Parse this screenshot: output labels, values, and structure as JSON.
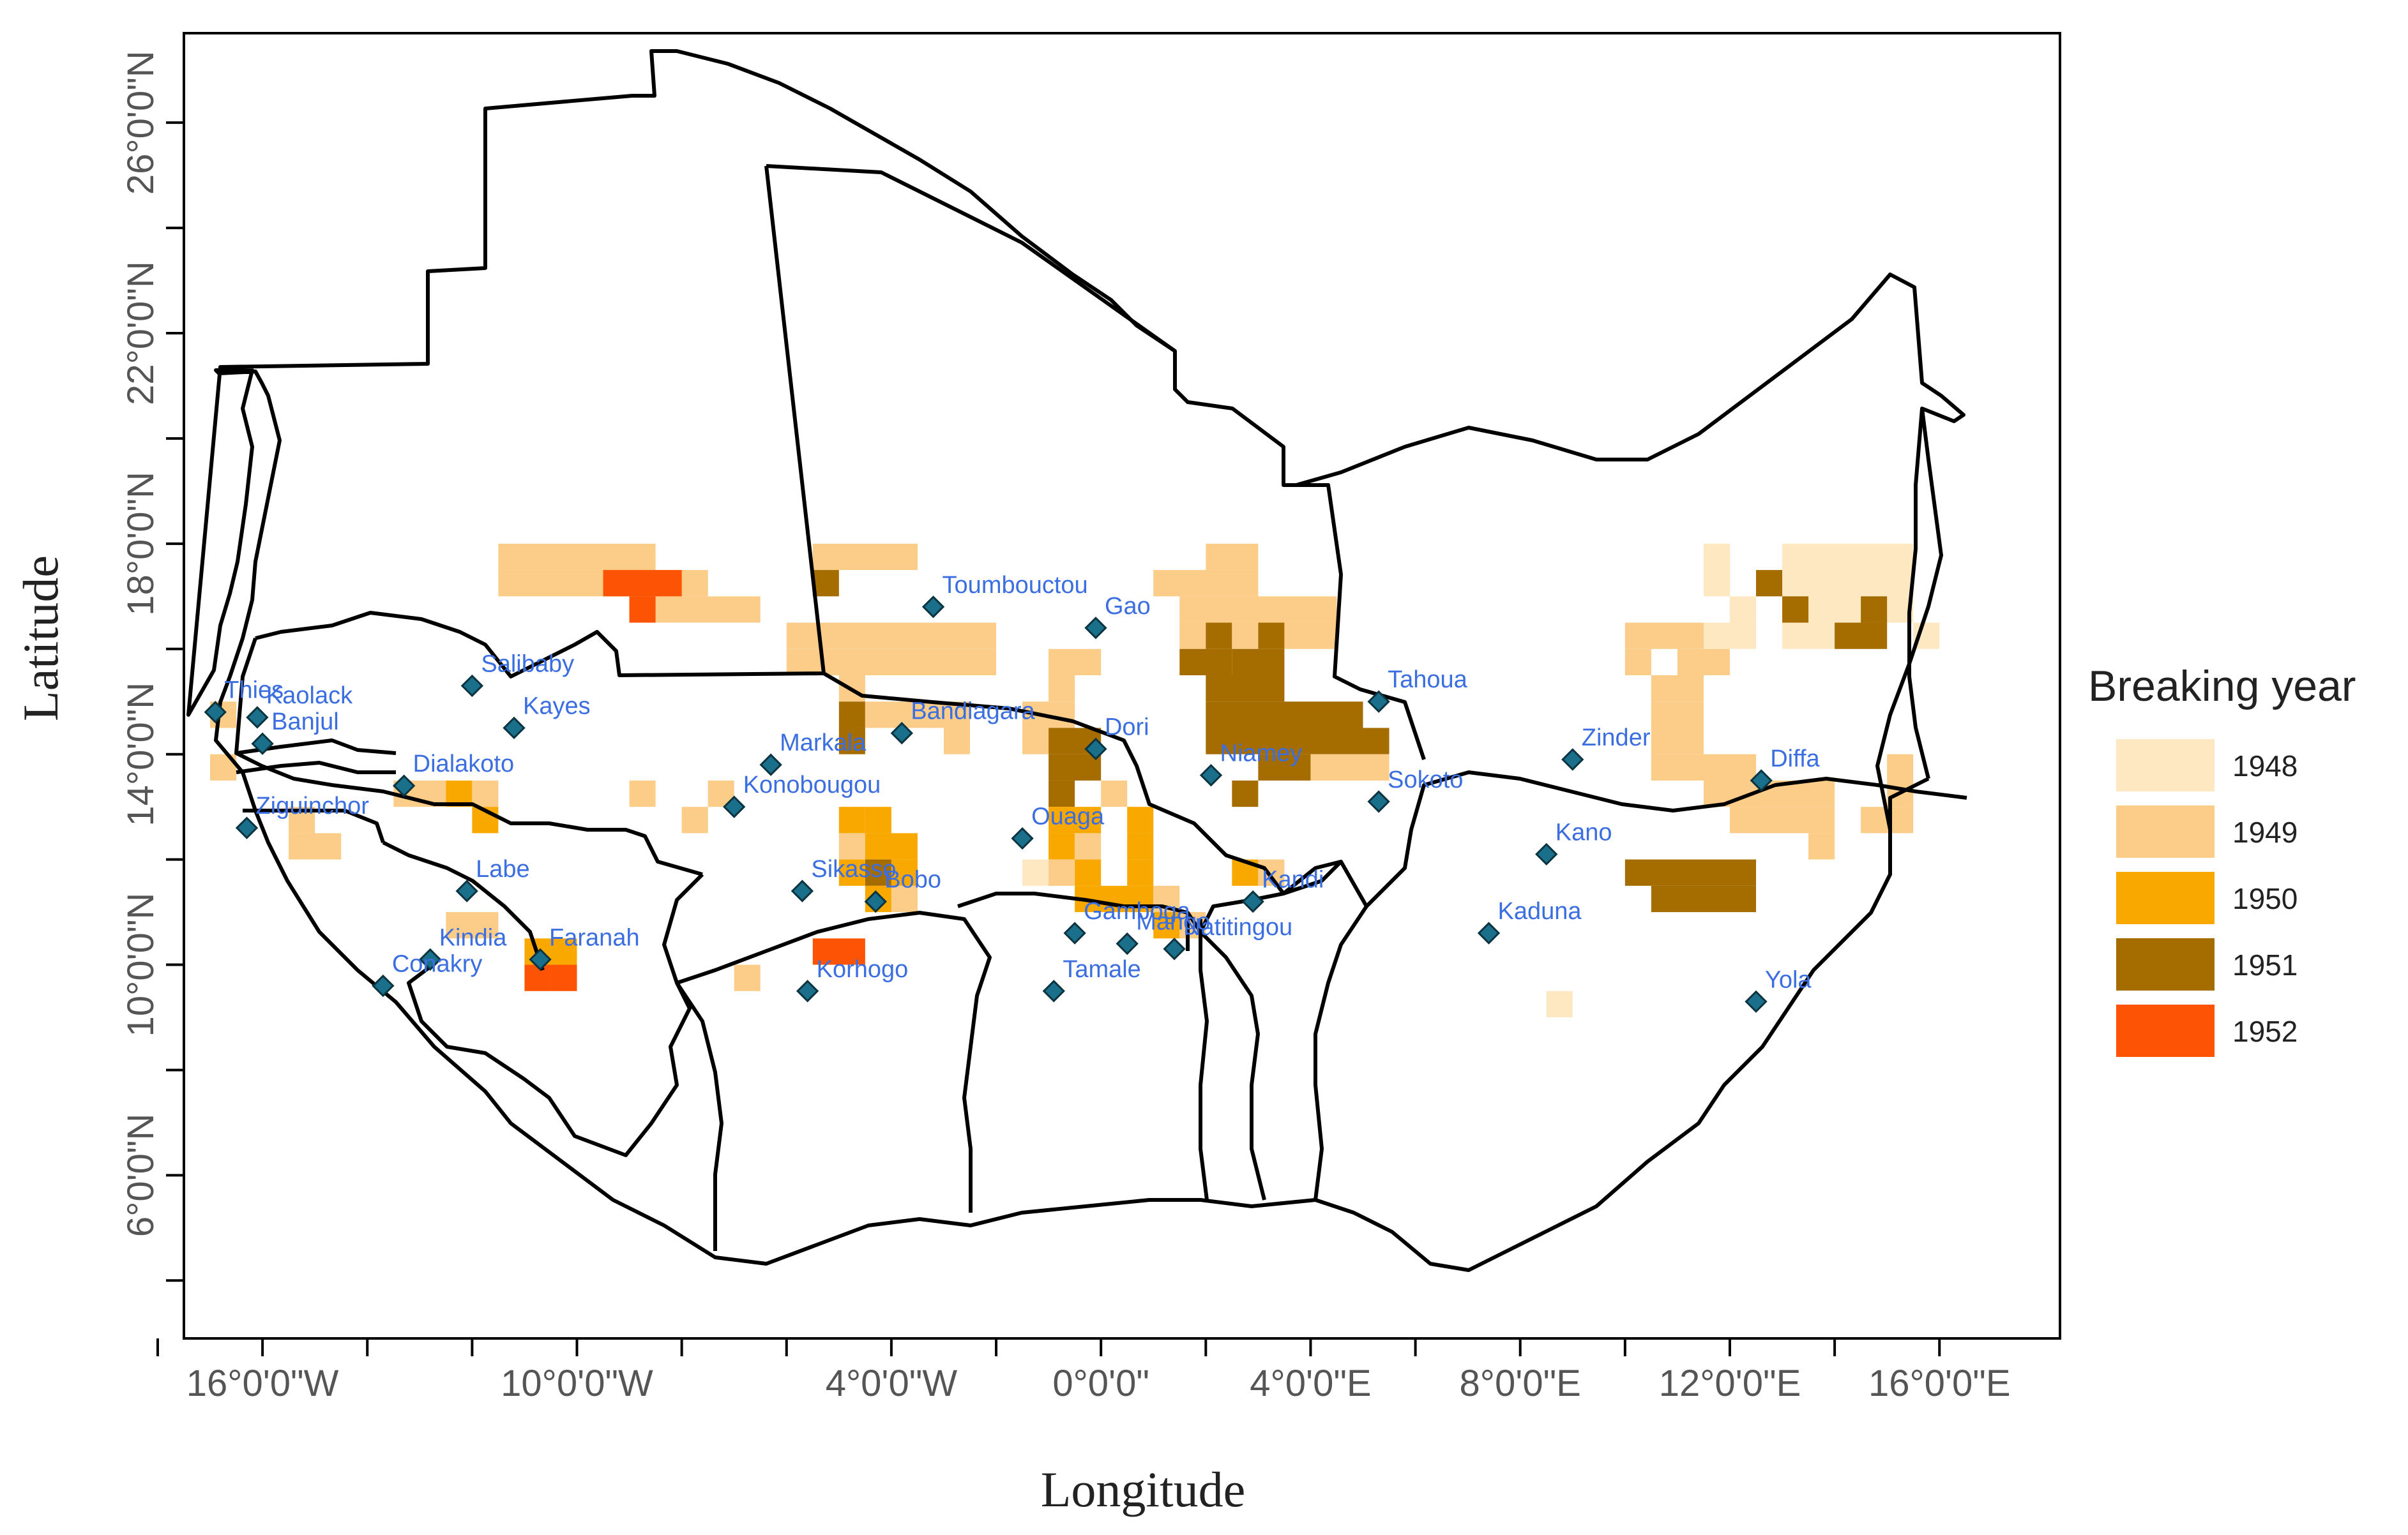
{
  "map": {
    "xlabel": "Longitude",
    "ylabel": "Latitude",
    "x_ticks": [
      {
        "value": -16,
        "label": "16°0'0\"W"
      },
      {
        "value": -10,
        "label": "10°0'0\"W"
      },
      {
        "value": -4,
        "label": "4°0'0\"W"
      },
      {
        "value": 0,
        "label": "0°0'0\""
      },
      {
        "value": 4,
        "label": "4°0'0\"E"
      },
      {
        "value": 8,
        "label": "8°0'0\"E"
      },
      {
        "value": 12,
        "label": "12°0'0\"E"
      },
      {
        "value": 16,
        "label": "16°0'0\"E"
      }
    ],
    "x_minor_ticks": [
      -18,
      -14,
      -12,
      -8,
      -6,
      -2,
      2,
      6,
      10,
      14
    ],
    "y_ticks": [
      {
        "value": 6,
        "label": "6°0'0\"N"
      },
      {
        "value": 10,
        "label": "10°0'0\"N"
      },
      {
        "value": 14,
        "label": "14°0'0\"N"
      },
      {
        "value": 18,
        "label": "18°0'0\"N"
      },
      {
        "value": 22,
        "label": "22°0'0\"N"
      },
      {
        "value": 26,
        "label": "26°0'0\"N"
      }
    ],
    "y_minor_ticks": [
      4,
      8,
      12,
      16,
      20,
      24
    ],
    "xlim": [
      -17.5,
      18.3
    ],
    "ylim": [
      2.9,
      27.7
    ]
  },
  "legend": {
    "title": "Breaking year",
    "entries": [
      {
        "label": "1948",
        "color": "#fde8c2"
      },
      {
        "label": "1949",
        "color": "#fbcd88"
      },
      {
        "label": "1950",
        "color": "#f9a800"
      },
      {
        "label": "1951",
        "color": "#a56c00"
      },
      {
        "label": "1952",
        "color": "#fc5404"
      }
    ]
  },
  "cities": [
    {
      "name": "Thies",
      "lon": -16.9,
      "lat": 14.8
    },
    {
      "name": "Kaolack",
      "lon": -16.1,
      "lat": 14.7
    },
    {
      "name": "Banjul",
      "lon": -16.0,
      "lat": 14.2
    },
    {
      "name": "Ziguinchor",
      "lon": -16.3,
      "lat": 12.6
    },
    {
      "name": "Salibaby",
      "lon": -12.0,
      "lat": 15.3
    },
    {
      "name": "Kayes",
      "lon": -11.2,
      "lat": 14.5
    },
    {
      "name": "Dialakoto",
      "lon": -13.3,
      "lat": 13.4
    },
    {
      "name": "Labe",
      "lon": -12.1,
      "lat": 11.4
    },
    {
      "name": "Kindia",
      "lon": -12.8,
      "lat": 10.1
    },
    {
      "name": "Conakry",
      "lon": -13.7,
      "lat": 9.6
    },
    {
      "name": "Faranah",
      "lon": -10.7,
      "lat": 10.1
    },
    {
      "name": "Toumbouctou",
      "lon": -3.2,
      "lat": 16.8
    },
    {
      "name": "Gao",
      "lon": -0.1,
      "lat": 16.4
    },
    {
      "name": "Bandiagara",
      "lon": -3.8,
      "lat": 14.4
    },
    {
      "name": "Markala",
      "lon": -6.3,
      "lat": 13.8
    },
    {
      "name": "Konobougou",
      "lon": -7.0,
      "lat": 13.0
    },
    {
      "name": "Dori",
      "lon": -0.1,
      "lat": 14.1
    },
    {
      "name": "Niamey",
      "lon": 2.1,
      "lat": 13.6
    },
    {
      "name": "Tahoua",
      "lon": 5.3,
      "lat": 15.0
    },
    {
      "name": "Sokoto",
      "lon": 5.3,
      "lat": 13.1
    },
    {
      "name": "Zinder",
      "lon": 9.0,
      "lat": 13.9
    },
    {
      "name": "Diffa",
      "lon": 12.6,
      "lat": 13.5
    },
    {
      "name": "Kano",
      "lon": 8.5,
      "lat": 12.1
    },
    {
      "name": "Kaduna",
      "lon": 7.4,
      "lat": 10.6
    },
    {
      "name": "Yola",
      "lon": 12.5,
      "lat": 9.3
    },
    {
      "name": "Ouaga",
      "lon": -1.5,
      "lat": 12.4
    },
    {
      "name": "Sikasso",
      "lon": -5.7,
      "lat": 11.4
    },
    {
      "name": "Bobo",
      "lon": -4.3,
      "lat": 11.2
    },
    {
      "name": "Korhogo",
      "lon": -5.6,
      "lat": 9.5
    },
    {
      "name": "Gamboga",
      "lon": -0.5,
      "lat": 10.6
    },
    {
      "name": "Mango",
      "lon": 0.5,
      "lat": 10.4
    },
    {
      "name": "Tamale",
      "lon": -0.9,
      "lat": 9.5
    },
    {
      "name": "Natitingou",
      "lon": 1.4,
      "lat": 10.3
    },
    {
      "name": "Kandi",
      "lon": 2.9,
      "lat": 11.2
    }
  ],
  "grid_cells": [
    {
      "lon": -11.5,
      "lat": 17.5,
      "cols": 6,
      "rows": 1,
      "year": 1949
    },
    {
      "lon": -5.5,
      "lat": 17.5,
      "cols": 4,
      "rows": 1,
      "year": 1949
    },
    {
      "lon": -11.5,
      "lat": 17.0,
      "cols": 8,
      "rows": 1,
      "year": 1949
    },
    {
      "lon": -9.0,
      "lat": 16.5,
      "cols": 5,
      "rows": 1,
      "year": 1949
    },
    {
      "lon": -9.5,
      "lat": 17.0,
      "cols": 3,
      "rows": 1,
      "year": 1952
    },
    {
      "lon": -9.0,
      "lat": 16.5,
      "cols": 1,
      "rows": 1,
      "year": 1952
    },
    {
      "lon": -5.5,
      "lat": 17.0,
      "cols": 1,
      "rows": 1,
      "year": 1951
    },
    {
      "lon": 2.0,
      "lat": 17.5,
      "cols": 2,
      "rows": 1,
      "year": 1949
    },
    {
      "lon": 1.0,
      "lat": 17.0,
      "cols": 4,
      "rows": 1,
      "year": 1949
    },
    {
      "lon": 1.5,
      "lat": 16.5,
      "cols": 6,
      "rows": 1,
      "year": 1949
    },
    {
      "lon": 1.5,
      "lat": 16.0,
      "cols": 1,
      "rows": 1,
      "year": 1949
    },
    {
      "lon": 2.0,
      "lat": 16.0,
      "cols": 1,
      "rows": 1,
      "year": 1951
    },
    {
      "lon": 2.5,
      "lat": 16.0,
      "cols": 1,
      "rows": 1,
      "year": 1949
    },
    {
      "lon": 3.0,
      "lat": 16.0,
      "cols": 1,
      "rows": 1,
      "year": 1951
    },
    {
      "lon": 3.5,
      "lat": 16.0,
      "cols": 2,
      "rows": 1,
      "year": 1949
    },
    {
      "lon": -6.0,
      "lat": 16.0,
      "cols": 8,
      "rows": 1,
      "year": 1949
    },
    {
      "lon": -6.0,
      "lat": 15.5,
      "cols": 8,
      "rows": 1,
      "year": 1949
    },
    {
      "lon": -1.0,
      "lat": 15.5,
      "cols": 2,
      "rows": 1,
      "year": 1949
    },
    {
      "lon": -1.0,
      "lat": 15.0,
      "cols": 1,
      "rows": 1,
      "year": 1949
    },
    {
      "lon": 1.5,
      "lat": 15.5,
      "cols": 2,
      "rows": 1,
      "year": 1951
    },
    {
      "lon": 2.5,
      "lat": 15.5,
      "cols": 2,
      "rows": 1,
      "year": 1951
    },
    {
      "lon": 2.0,
      "lat": 15.0,
      "cols": 3,
      "rows": 1,
      "year": 1951
    },
    {
      "lon": 2.0,
      "lat": 14.5,
      "cols": 6,
      "rows": 1,
      "year": 1951
    },
    {
      "lon": 2.0,
      "lat": 14.0,
      "cols": 7,
      "rows": 1,
      "year": 1951
    },
    {
      "lon": 3.0,
      "lat": 13.5,
      "cols": 2,
      "rows": 1,
      "year": 1951
    },
    {
      "lon": 4.0,
      "lat": 13.5,
      "cols": 3,
      "rows": 1,
      "year": 1949
    },
    {
      "lon": 2.5,
      "lat": 13.0,
      "cols": 1,
      "rows": 1,
      "year": 1951
    },
    {
      "lon": -5.0,
      "lat": 15.0,
      "cols": 1,
      "rows": 1,
      "year": 1949
    },
    {
      "lon": -5.0,
      "lat": 14.5,
      "cols": 1,
      "rows": 1,
      "year": 1951
    },
    {
      "lon": -5.0,
      "lat": 14.0,
      "cols": 1,
      "rows": 1,
      "year": 1951
    },
    {
      "lon": -4.5,
      "lat": 14.5,
      "cols": 4,
      "rows": 1,
      "year": 1949
    },
    {
      "lon": -3.0,
      "lat": 14.0,
      "cols": 1,
      "rows": 1,
      "year": 1949
    },
    {
      "lon": -1.5,
      "lat": 14.5,
      "cols": 2,
      "rows": 1,
      "year": 1949
    },
    {
      "lon": -1.5,
      "lat": 14.0,
      "cols": 1,
      "rows": 1,
      "year": 1949
    },
    {
      "lon": -1.0,
      "lat": 14.0,
      "cols": 2,
      "rows": 1,
      "year": 1951
    },
    {
      "lon": -1.0,
      "lat": 13.5,
      "cols": 2,
      "rows": 1,
      "year": 1951
    },
    {
      "lon": 0.0,
      "lat": 13.0,
      "cols": 1,
      "rows": 1,
      "year": 1949
    },
    {
      "lon": -1.0,
      "lat": 13.0,
      "cols": 1,
      "rows": 1,
      "year": 1951
    },
    {
      "lon": -1.0,
      "lat": 12.5,
      "cols": 2,
      "rows": 1,
      "year": 1950
    },
    {
      "lon": 0.5,
      "lat": 12.5,
      "cols": 1,
      "rows": 1,
      "year": 1950
    },
    {
      "lon": -1.0,
      "lat": 12.0,
      "cols": 1,
      "rows": 1,
      "year": 1950
    },
    {
      "lon": -0.5,
      "lat": 12.0,
      "cols": 1,
      "rows": 1,
      "year": 1949
    },
    {
      "lon": 0.5,
      "lat": 12.0,
      "cols": 1,
      "rows": 1,
      "year": 1950
    },
    {
      "lon": -1.5,
      "lat": 11.5,
      "cols": 1,
      "rows": 1,
      "year": 1948
    },
    {
      "lon": -1.0,
      "lat": 11.5,
      "cols": 1,
      "rows": 1,
      "year": 1949
    },
    {
      "lon": -0.5,
      "lat": 11.5,
      "cols": 1,
      "rows": 1,
      "year": 1950
    },
    {
      "lon": 0.5,
      "lat": 11.5,
      "cols": 1,
      "rows": 1,
      "year": 1950
    },
    {
      "lon": -0.5,
      "lat": 11.0,
      "cols": 3,
      "rows": 1,
      "year": 1950
    },
    {
      "lon": 1.0,
      "lat": 11.0,
      "cols": 1,
      "rows": 1,
      "year": 1949
    },
    {
      "lon": 1.0,
      "lat": 10.5,
      "cols": 1,
      "rows": 1,
      "year": 1950
    },
    {
      "lon": 1.5,
      "lat": 10.5,
      "cols": 1,
      "rows": 1,
      "year": 1949
    },
    {
      "lon": 2.5,
      "lat": 11.5,
      "cols": 1,
      "rows": 1,
      "year": 1950
    },
    {
      "lon": 3.0,
      "lat": 11.5,
      "cols": 1,
      "rows": 1,
      "year": 1949
    },
    {
      "lon": -5.0,
      "lat": 12.5,
      "cols": 1,
      "rows": 1,
      "year": 1950
    },
    {
      "lon": -4.5,
      "lat": 12.5,
      "cols": 1,
      "rows": 1,
      "year": 1950
    },
    {
      "lon": -5.0,
      "lat": 12.0,
      "cols": 1,
      "rows": 1,
      "year": 1949
    },
    {
      "lon": -4.5,
      "lat": 12.0,
      "cols": 2,
      "rows": 1,
      "year": 1950
    },
    {
      "lon": -5.0,
      "lat": 11.5,
      "cols": 1,
      "rows": 1,
      "year": 1950
    },
    {
      "lon": -4.5,
      "lat": 11.5,
      "cols": 1,
      "rows": 1,
      "year": 1951
    },
    {
      "lon": -4.0,
      "lat": 11.5,
      "cols": 1,
      "rows": 1,
      "year": 1950
    },
    {
      "lon": -4.5,
      "lat": 11.0,
      "cols": 1,
      "rows": 1,
      "year": 1950
    },
    {
      "lon": -4.0,
      "lat": 11.0,
      "cols": 1,
      "rows": 1,
      "year": 1949
    },
    {
      "lon": -5.5,
      "lat": 10.0,
      "cols": 2,
      "rows": 1,
      "year": 1952
    },
    {
      "lon": -7.5,
      "lat": 13.0,
      "cols": 1,
      "rows": 1,
      "year": 1949
    },
    {
      "lon": -8.0,
      "lat": 12.5,
      "cols": 1,
      "rows": 1,
      "year": 1949
    },
    {
      "lon": -9.0,
      "lat": 13.0,
      "cols": 1,
      "rows": 1,
      "year": 1949
    },
    {
      "lon": -7.0,
      "lat": 9.5,
      "cols": 1,
      "rows": 1,
      "year": 1949
    },
    {
      "lon": -13.5,
      "lat": 13.0,
      "cols": 2,
      "rows": 1,
      "year": 1949
    },
    {
      "lon": -12.5,
      "lat": 13.0,
      "cols": 1,
      "rows": 1,
      "year": 1950
    },
    {
      "lon": -12.0,
      "lat": 13.0,
      "cols": 1,
      "rows": 1,
      "year": 1949
    },
    {
      "lon": -12.0,
      "lat": 12.5,
      "cols": 1,
      "rows": 1,
      "year": 1950
    },
    {
      "lon": -15.5,
      "lat": 12.0,
      "cols": 2,
      "rows": 1,
      "year": 1949
    },
    {
      "lon": -15.5,
      "lat": 12.5,
      "cols": 1,
      "rows": 1,
      "year": 1949
    },
    {
      "lon": -17.0,
      "lat": 14.5,
      "cols": 1,
      "rows": 1,
      "year": 1949
    },
    {
      "lon": -17.0,
      "lat": 13.5,
      "cols": 1,
      "rows": 1,
      "year": 1949
    },
    {
      "lon": -12.5,
      "lat": 10.5,
      "cols": 2,
      "rows": 1,
      "year": 1949
    },
    {
      "lon": -11.0,
      "lat": 10.0,
      "cols": 1,
      "rows": 1,
      "year": 1950
    },
    {
      "lon": -11.0,
      "lat": 9.5,
      "cols": 1,
      "rows": 1,
      "year": 1952
    },
    {
      "lon": -10.5,
      "lat": 9.5,
      "cols": 1,
      "rows": 1,
      "year": 1952
    },
    {
      "lon": -10.5,
      "lat": 10.0,
      "cols": 1,
      "rows": 1,
      "year": 1950
    },
    {
      "lon": 10.0,
      "lat": 16.0,
      "cols": 3,
      "rows": 1,
      "year": 1949
    },
    {
      "lon": 10.0,
      "lat": 15.5,
      "cols": 1,
      "rows": 1,
      "year": 1949
    },
    {
      "lon": 10.5,
      "lat": 15.0,
      "cols": 2,
      "rows": 1,
      "year": 1949
    },
    {
      "lon": 10.5,
      "lat": 14.5,
      "cols": 2,
      "rows": 1,
      "year": 1949
    },
    {
      "lon": 11.0,
      "lat": 15.5,
      "cols": 2,
      "rows": 1,
      "year": 1949
    },
    {
      "lon": 10.5,
      "lat": 14.0,
      "cols": 2,
      "rows": 1,
      "year": 1949
    },
    {
      "lon": 10.5,
      "lat": 13.5,
      "cols": 4,
      "rows": 1,
      "year": 1949
    },
    {
      "lon": 11.5,
      "lat": 13.0,
      "cols": 2,
      "rows": 1,
      "year": 1949
    },
    {
      "lon": 12.0,
      "lat": 13.0,
      "cols": 4,
      "rows": 1,
      "year": 1949
    },
    {
      "lon": 12.0,
      "lat": 12.5,
      "cols": 4,
      "rows": 1,
      "year": 1949
    },
    {
      "lon": 13.5,
      "lat": 12.0,
      "cols": 1,
      "rows": 1,
      "year": 1949
    },
    {
      "lon": 15.0,
      "lat": 13.0,
      "cols": 1,
      "rows": 1,
      "year": 1949
    },
    {
      "lon": 15.0,
      "lat": 12.5,
      "cols": 1,
      "rows": 1,
      "year": 1949
    },
    {
      "lon": 14.5,
      "lat": 12.5,
      "cols": 1,
      "rows": 1,
      "year": 1949
    },
    {
      "lon": 15.0,
      "lat": 13.5,
      "cols": 1,
      "rows": 1,
      "year": 1949
    },
    {
      "lon": 11.5,
      "lat": 17.5,
      "cols": 1,
      "rows": 1,
      "year": 1948
    },
    {
      "lon": 11.5,
      "lat": 17.0,
      "cols": 1,
      "rows": 1,
      "year": 1948
    },
    {
      "lon": 12.0,
      "lat": 16.5,
      "cols": 1,
      "rows": 1,
      "year": 1948
    },
    {
      "lon": 11.5,
      "lat": 16.0,
      "cols": 2,
      "rows": 1,
      "year": 1948
    },
    {
      "lon": 13.0,
      "lat": 17.5,
      "cols": 5,
      "rows": 1,
      "year": 1948
    },
    {
      "lon": 13.0,
      "lat": 17.0,
      "cols": 5,
      "rows": 1,
      "year": 1948
    },
    {
      "lon": 13.0,
      "lat": 16.5,
      "cols": 5,
      "rows": 1,
      "year": 1948
    },
    {
      "lon": 13.0,
      "lat": 16.0,
      "cols": 2,
      "rows": 1,
      "year": 1948
    },
    {
      "lon": 15.5,
      "lat": 16.0,
      "cols": 1,
      "rows": 1,
      "year": 1948
    },
    {
      "lon": 12.5,
      "lat": 17.0,
      "cols": 1,
      "rows": 1,
      "year": 1951
    },
    {
      "lon": 13.0,
      "lat": 16.5,
      "cols": 1,
      "rows": 1,
      "year": 1951
    },
    {
      "lon": 14.5,
      "lat": 16.5,
      "cols": 1,
      "rows": 1,
      "year": 1951
    },
    {
      "lon": 14.0,
      "lat": 16.0,
      "cols": 2,
      "rows": 1,
      "year": 1951
    },
    {
      "lon": 10.0,
      "lat": 11.5,
      "cols": 5,
      "rows": 1,
      "year": 1951
    },
    {
      "lon": 10.5,
      "lat": 11.0,
      "cols": 4,
      "rows": 1,
      "year": 1951
    },
    {
      "lon": 8.5,
      "lat": 9.0,
      "cols": 1,
      "rows": 1,
      "year": 1948
    }
  ]
}
